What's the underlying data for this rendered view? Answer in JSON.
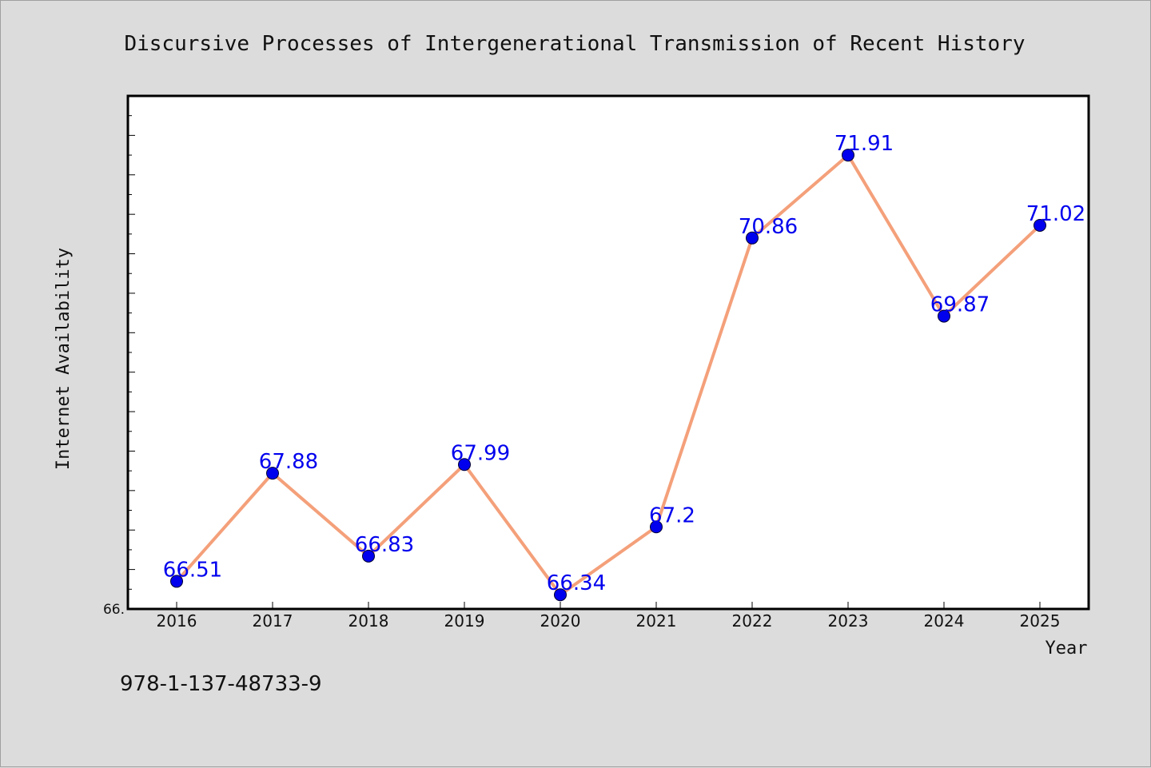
{
  "chart_data": {
    "type": "line",
    "title": "Discursive Processes of Intergenerational Transmission of Recent History",
    "xlabel": "Year",
    "ylabel": "Internet Availability",
    "categories": [
      "2016",
      "2017",
      "2018",
      "2019",
      "2020",
      "2021",
      "2022",
      "2023",
      "2024",
      "2025"
    ],
    "series": [
      {
        "values": [
          66.51,
          67.88,
          66.83,
          67.99,
          66.34,
          67.2,
          70.86,
          71.91,
          69.87,
          71.02
        ]
      }
    ],
    "data_labels": [
      "66.51",
      "67.88",
      "66.83",
      "67.99",
      "66.34",
      "67.2",
      "70.86",
      "71.91",
      "69.87",
      "71.02"
    ],
    "ylim": [
      66.16,
      72.66
    ],
    "ytick_labels": [
      {
        "value": 66.16,
        "label": "66."
      }
    ],
    "grid": false,
    "legend": "none",
    "colors": {
      "line": "#f4a07a",
      "marker": "#0000ee",
      "label": "#0000ee",
      "background": "#dcdcdc",
      "plot_background": "#ffffff"
    }
  },
  "footer": {
    "isbn": "978-1-137-48733-9"
  }
}
